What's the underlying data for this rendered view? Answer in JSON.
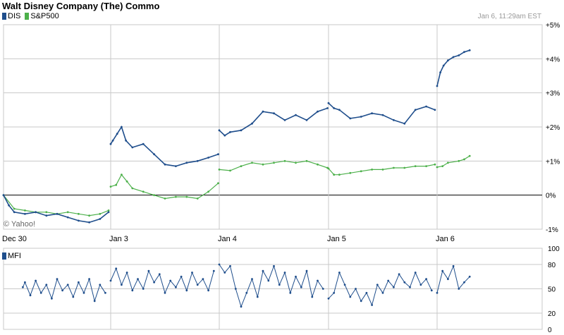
{
  "title": "Walt Disney Company (The) Commo",
  "timestamp": "Jan 6, 11:29am EST",
  "copyright": "© Yahoo!",
  "colors": {
    "dis": "#1f4e8c",
    "sp500": "#4cb04a",
    "mfi": "#1f4e8c",
    "grid": "#c8c8c8"
  },
  "legend": [
    {
      "label": "DIS",
      "color": "#1f4e8c"
    },
    {
      "label": "S&P500",
      "color": "#4cb04a"
    }
  ],
  "mfi_label": "MFI",
  "chart_data": [
    {
      "type": "line",
      "title": "Walt Disney Company (The) Commo",
      "ylim": [
        -1,
        5
      ],
      "y_ticks": [
        "+5%",
        "+4%",
        "+3%",
        "+2%",
        "+1%",
        "0%",
        "-1%"
      ],
      "y_tick_values": [
        5,
        4,
        3,
        2,
        1,
        0,
        -1
      ],
      "x_ticks": [
        "Dec 30",
        "Jan 3",
        "Jan 4",
        "Jan 5",
        "Jan 6"
      ],
      "x_tick_values": [
        0,
        1,
        2,
        3,
        4
      ],
      "grid": true,
      "legend_position": "top-left",
      "series": [
        {
          "name": "DIS",
          "x": [
            0.0,
            0.05,
            0.1,
            0.2,
            0.3,
            0.4,
            0.5,
            0.6,
            0.7,
            0.8,
            0.9,
            0.98,
            1.0,
            1.02,
            1.06,
            1.1,
            1.14,
            1.2,
            1.3,
            1.4,
            1.5,
            1.6,
            1.7,
            1.8,
            1.9,
            1.99,
            2.0,
            2.05,
            2.1,
            2.2,
            2.3,
            2.4,
            2.5,
            2.6,
            2.7,
            2.8,
            2.9,
            2.99,
            3.0,
            3.05,
            3.1,
            3.2,
            3.3,
            3.4,
            3.5,
            3.6,
            3.7,
            3.8,
            3.9,
            3.98,
            4.0,
            4.03,
            4.06,
            4.1,
            4.15,
            4.2,
            4.25,
            4.3
          ],
          "values": [
            0.0,
            -0.3,
            -0.5,
            -0.55,
            -0.5,
            -0.6,
            -0.55,
            -0.65,
            -0.75,
            -0.8,
            -0.7,
            -0.5,
            1.5,
            1.6,
            1.8,
            2.0,
            1.6,
            1.4,
            1.5,
            1.2,
            0.9,
            0.85,
            0.95,
            1.0,
            1.1,
            1.2,
            1.9,
            1.75,
            1.85,
            1.9,
            2.1,
            2.45,
            2.4,
            2.2,
            2.35,
            2.2,
            2.45,
            2.55,
            2.7,
            2.55,
            2.5,
            2.25,
            2.3,
            2.4,
            2.35,
            2.2,
            2.1,
            2.5,
            2.6,
            2.5,
            3.2,
            3.6,
            3.8,
            3.95,
            4.05,
            4.1,
            4.2,
            4.25
          ]
        },
        {
          "name": "S&P500",
          "x": [
            0.0,
            0.1,
            0.2,
            0.3,
            0.4,
            0.5,
            0.6,
            0.7,
            0.8,
            0.9,
            0.98,
            1.0,
            1.05,
            1.1,
            1.15,
            1.2,
            1.3,
            1.4,
            1.5,
            1.6,
            1.7,
            1.8,
            1.9,
            1.99,
            2.0,
            2.1,
            2.2,
            2.3,
            2.4,
            2.5,
            2.6,
            2.7,
            2.8,
            2.9,
            2.99,
            3.0,
            3.05,
            3.1,
            3.2,
            3.3,
            3.4,
            3.5,
            3.6,
            3.7,
            3.8,
            3.9,
            3.98,
            4.0,
            4.05,
            4.1,
            4.2,
            4.25,
            4.3
          ],
          "values": [
            0.0,
            -0.4,
            -0.45,
            -0.5,
            -0.5,
            -0.55,
            -0.5,
            -0.55,
            -0.6,
            -0.55,
            -0.45,
            0.25,
            0.3,
            0.6,
            0.4,
            0.2,
            0.1,
            0.0,
            -0.1,
            -0.05,
            -0.05,
            -0.1,
            0.1,
            0.35,
            0.75,
            0.72,
            0.85,
            0.95,
            0.9,
            0.95,
            1.0,
            0.95,
            1.0,
            0.9,
            0.8,
            0.78,
            0.6,
            0.6,
            0.65,
            0.7,
            0.75,
            0.75,
            0.8,
            0.8,
            0.85,
            0.85,
            0.9,
            0.82,
            0.85,
            0.95,
            1.0,
            1.05,
            1.15
          ]
        }
      ]
    },
    {
      "type": "line",
      "title": "MFI",
      "ylim": [
        0,
        100
      ],
      "y_ticks": [
        "100",
        "80",
        "50",
        "20",
        "0"
      ],
      "y_tick_values": [
        100,
        80,
        50,
        20,
        0
      ],
      "x_ticks": [
        "Dec 30",
        "Jan 3",
        "Jan 4",
        "Jan 5",
        "Jan 6"
      ],
      "x_tick_values": [
        0,
        1,
        2,
        3,
        4
      ],
      "series": [
        {
          "name": "MFI",
          "x": [
            0.18,
            0.2,
            0.25,
            0.3,
            0.35,
            0.4,
            0.45,
            0.5,
            0.55,
            0.6,
            0.65,
            0.7,
            0.75,
            0.8,
            0.85,
            0.9,
            0.95,
            1.0,
            1.05,
            1.1,
            1.15,
            1.2,
            1.25,
            1.3,
            1.35,
            1.4,
            1.45,
            1.5,
            1.55,
            1.6,
            1.65,
            1.7,
            1.75,
            1.8,
            1.85,
            1.9,
            1.95,
            2.0,
            2.05,
            2.1,
            2.15,
            2.2,
            2.25,
            2.3,
            2.35,
            2.4,
            2.45,
            2.5,
            2.55,
            2.6,
            2.65,
            2.7,
            2.75,
            2.8,
            2.85,
            2.9,
            2.95,
            3.0,
            3.05,
            3.1,
            3.15,
            3.2,
            3.25,
            3.3,
            3.35,
            3.4,
            3.45,
            3.5,
            3.55,
            3.6,
            3.65,
            3.7,
            3.75,
            3.8,
            3.85,
            3.9,
            3.95,
            4.0,
            4.05,
            4.1,
            4.15,
            4.2,
            4.25,
            4.3
          ],
          "values": [
            52,
            58,
            42,
            60,
            45,
            55,
            38,
            62,
            48,
            55,
            40,
            58,
            45,
            62,
            35,
            55,
            45,
            60,
            75,
            55,
            70,
            48,
            62,
            50,
            72,
            58,
            68,
            45,
            60,
            52,
            65,
            48,
            70,
            55,
            62,
            48,
            72,
            80,
            70,
            78,
            50,
            28,
            45,
            62,
            40,
            72,
            60,
            78,
            55,
            70,
            45,
            65,
            52,
            72,
            40,
            60,
            50,
            38,
            45,
            70,
            55,
            40,
            50,
            35,
            45,
            30,
            55,
            45,
            60,
            52,
            68,
            58,
            52,
            70,
            55,
            62,
            48,
            45,
            72,
            62,
            78,
            50,
            58,
            65
          ]
        }
      ]
    }
  ]
}
